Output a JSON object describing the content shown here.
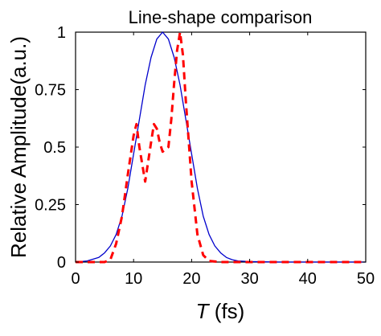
{
  "chart_data": {
    "type": "line",
    "title": "Line-shape comparison",
    "xlabel_var": "T",
    "xlabel_unit": " (fs)",
    "ylabel": "Relative Amplitude(a.u.)",
    "xlim": [
      0,
      50
    ],
    "ylim": [
      0,
      1
    ],
    "xticks": [
      0,
      10,
      20,
      30,
      40,
      50
    ],
    "xtick_labels": [
      "0",
      "10",
      "20",
      "30",
      "40",
      "50"
    ],
    "yticks": [
      0,
      0.25,
      0.5,
      0.75,
      1
    ],
    "ytick_labels": [
      "0",
      "0.25",
      "0.5",
      "0.75",
      "1"
    ],
    "grid": false,
    "legend": "none",
    "series": [
      {
        "style": "solid",
        "color": "#0000cc",
        "x": [
          0,
          2,
          4,
          5,
          6,
          7,
          8,
          9,
          10,
          11,
          12,
          13,
          14,
          15,
          16,
          17,
          18,
          19,
          20,
          21,
          22,
          23,
          24,
          25,
          26,
          27,
          28,
          30,
          32,
          35,
          40,
          45,
          50
        ],
        "y": [
          0,
          0.005,
          0.02,
          0.04,
          0.07,
          0.12,
          0.2,
          0.32,
          0.47,
          0.62,
          0.77,
          0.89,
          0.97,
          1.0,
          0.97,
          0.89,
          0.77,
          0.62,
          0.47,
          0.32,
          0.2,
          0.12,
          0.07,
          0.04,
          0.02,
          0.01,
          0.005,
          0.002,
          0.001,
          0.0,
          0.0,
          0.0,
          0.0
        ]
      },
      {
        "style": "dashed",
        "color": "#ff0000",
        "x": [
          0,
          3,
          5,
          6,
          7,
          8,
          9,
          10,
          10.5,
          11,
          12,
          13,
          13.5,
          14,
          14.5,
          15,
          16,
          16.5,
          17,
          17.5,
          18,
          18.5,
          19,
          20,
          21,
          22,
          23,
          25,
          30,
          40,
          50
        ],
        "y": [
          0,
          0,
          0,
          0.01,
          0.08,
          0.2,
          0.38,
          0.55,
          0.6,
          0.5,
          0.35,
          0.52,
          0.6,
          0.58,
          0.52,
          0.48,
          0.5,
          0.62,
          0.78,
          0.92,
          1.0,
          0.9,
          0.7,
          0.35,
          0.12,
          0.03,
          0.005,
          0,
          0,
          0,
          0
        ]
      }
    ]
  }
}
